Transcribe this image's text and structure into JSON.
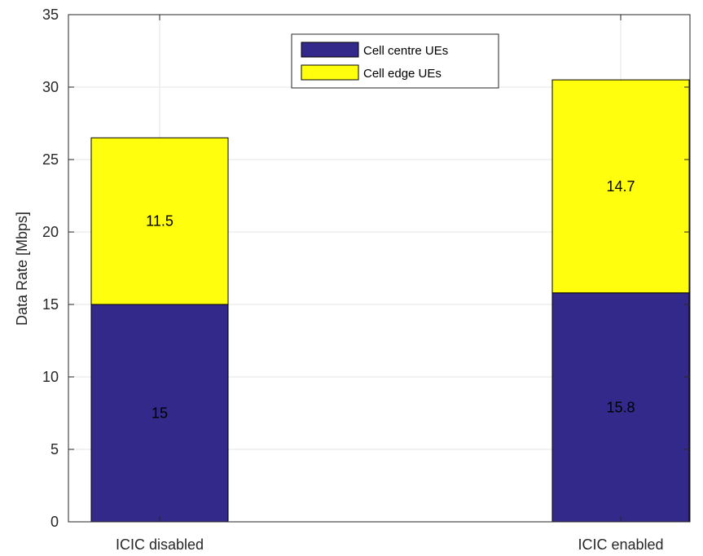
{
  "chart_data": {
    "type": "bar",
    "stacked": true,
    "categories": [
      "ICIC disabled",
      "ICIC enabled"
    ],
    "series": [
      {
        "name": "Cell centre UEs",
        "values": [
          15,
          15.8
        ],
        "color": "#33298a"
      },
      {
        "name": "Cell edge UEs",
        "values": [
          11.5,
          14.7
        ],
        "color": "#ffff0d"
      }
    ],
    "data_labels": [
      [
        "15",
        "15.8"
      ],
      [
        "11.5",
        "14.7"
      ]
    ],
    "ylabel": "Data Rate [Mbps]",
    "xlabel": "",
    "title": "",
    "ylim": [
      0,
      35
    ],
    "yticks": [
      0,
      5,
      10,
      15,
      20,
      25,
      30,
      35
    ],
    "grid": true,
    "legend_position": "top-center"
  }
}
